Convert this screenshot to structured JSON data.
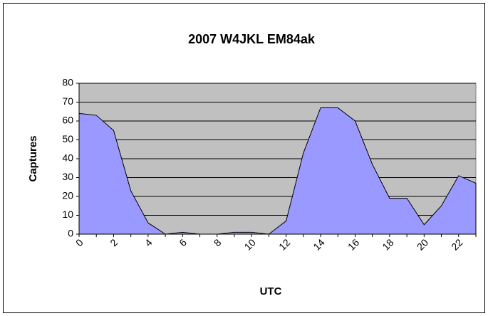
{
  "chart_data": {
    "type": "area",
    "title": "2007 W4JKL EM84ak",
    "x_label": "UTC",
    "y_label": "Captures",
    "categories": [
      "0",
      null,
      "2",
      null,
      "4",
      null,
      "6",
      null,
      "8",
      null,
      "10",
      null,
      "12",
      null,
      "14",
      null,
      "16",
      null,
      "18",
      null,
      "20",
      null,
      "22",
      null
    ],
    "values": [
      64,
      63,
      55,
      23,
      6,
      0,
      1,
      0,
      0,
      1,
      1,
      0,
      7,
      43,
      67,
      67,
      60,
      37,
      19,
      19,
      5,
      15,
      31,
      27
    ],
    "color": "#9999ff",
    "plot_background": "#c0c0c0",
    "ylim": [
      0,
      80
    ],
    "yticks": [
      0,
      10,
      20,
      30,
      40,
      50,
      60,
      70,
      80
    ],
    "grid": true
  }
}
